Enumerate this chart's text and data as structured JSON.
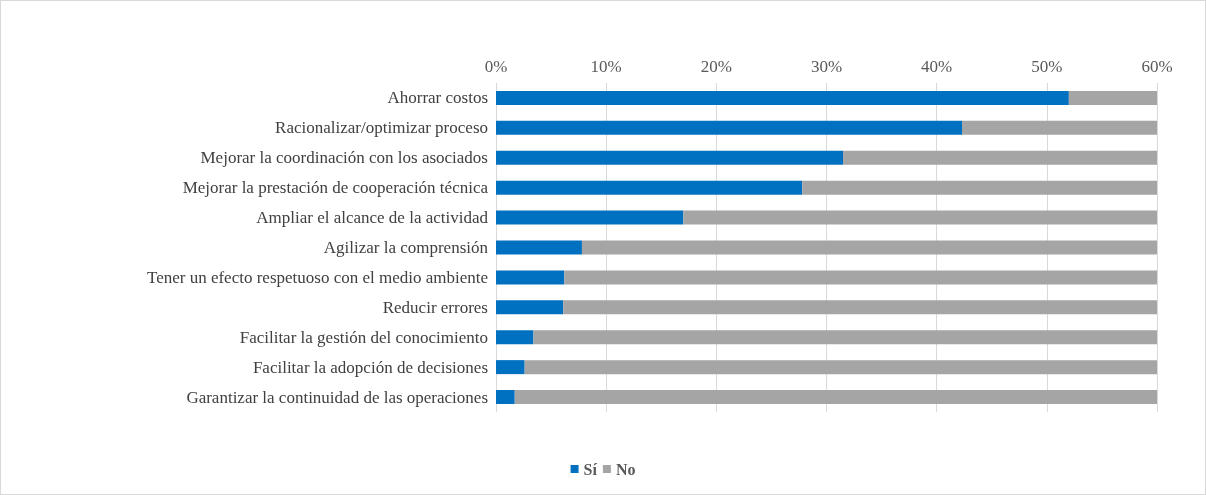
{
  "chart_data": {
    "type": "bar",
    "orientation": "horizontal",
    "stacked": true,
    "categories": [
      "Ahorrar costos",
      "Racionalizar/optimizar proceso",
      "Mejorar la coordinación con los asociados",
      "Mejorar la prestación de cooperación técnica",
      "Ampliar el alcance de la actividad",
      "Agilizar la comprensión",
      "Tener un efecto respetuoso con el medio ambiente",
      "Reducir errores",
      "Facilitar la gestión del conocimiento",
      "Facilitar la adopción de decisiones",
      "Garantizar la continuidad de las operaciones"
    ],
    "series": [
      {
        "name": "Sí",
        "color": "#0070c0",
        "values": [
          52,
          42.3,
          31.5,
          27.8,
          17,
          7.8,
          6.2,
          6.1,
          3.4,
          2.6,
          1.7
        ]
      },
      {
        "name": "No",
        "color": "#a5a5a5",
        "values": [
          8,
          17.7,
          28.5,
          32.2,
          43,
          52.2,
          53.8,
          53.9,
          56.6,
          57.4,
          58.3
        ]
      }
    ],
    "xlim": [
      0,
      60
    ],
    "xticks": [
      {
        "value": 0,
        "label": "0%"
      },
      {
        "value": 10,
        "label": "10%"
      },
      {
        "value": 20,
        "label": "20%"
      },
      {
        "value": 30,
        "label": "30%"
      },
      {
        "value": 40,
        "label": "40%"
      },
      {
        "value": 50,
        "label": "50%"
      },
      {
        "value": 60,
        "label": "60%"
      }
    ],
    "grid": "x",
    "legend": "bottom"
  }
}
